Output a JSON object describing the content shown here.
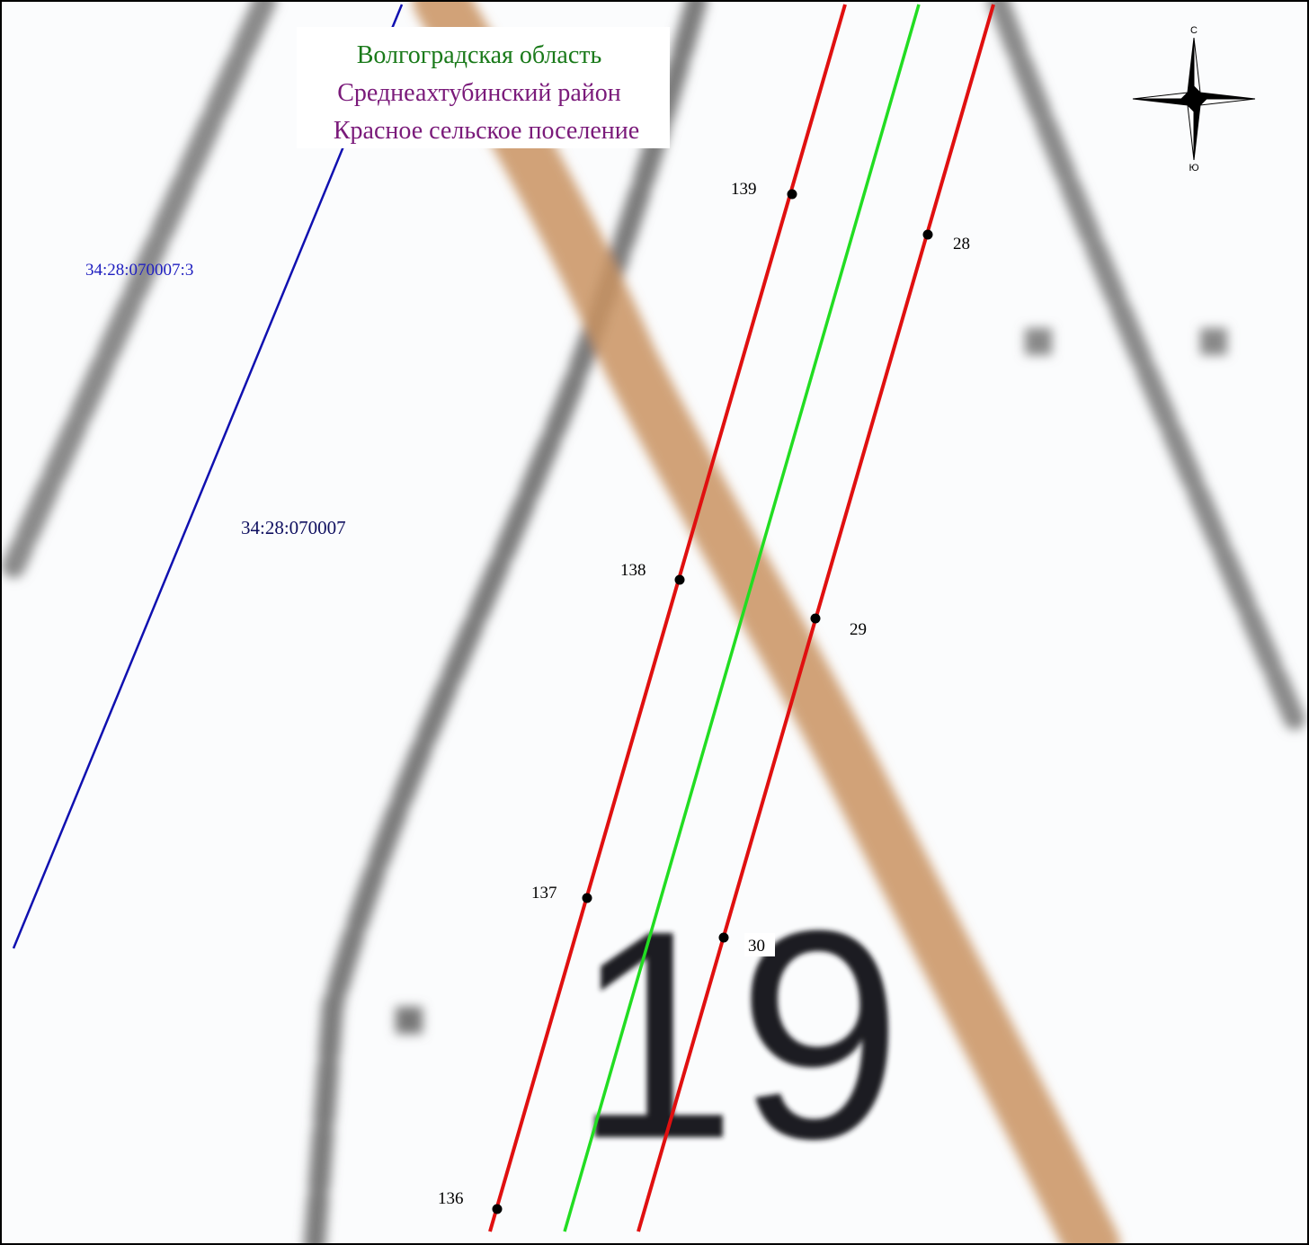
{
  "header": {
    "region": "Волгоградская область",
    "district": "Среднеахтубинский район",
    "settlement": "Красное сельское поселение"
  },
  "parcels": [
    {
      "label": "34:28:070007:3"
    },
    {
      "label": "34:28:070007"
    }
  ],
  "points": [
    {
      "label": "139"
    },
    {
      "label": "28"
    },
    {
      "label": "138"
    },
    {
      "label": "29"
    },
    {
      "label": "137"
    },
    {
      "label": "30"
    },
    {
      "label": "136"
    }
  ],
  "compass": {
    "north": "С",
    "south": "Ю"
  },
  "map_label": "19"
}
